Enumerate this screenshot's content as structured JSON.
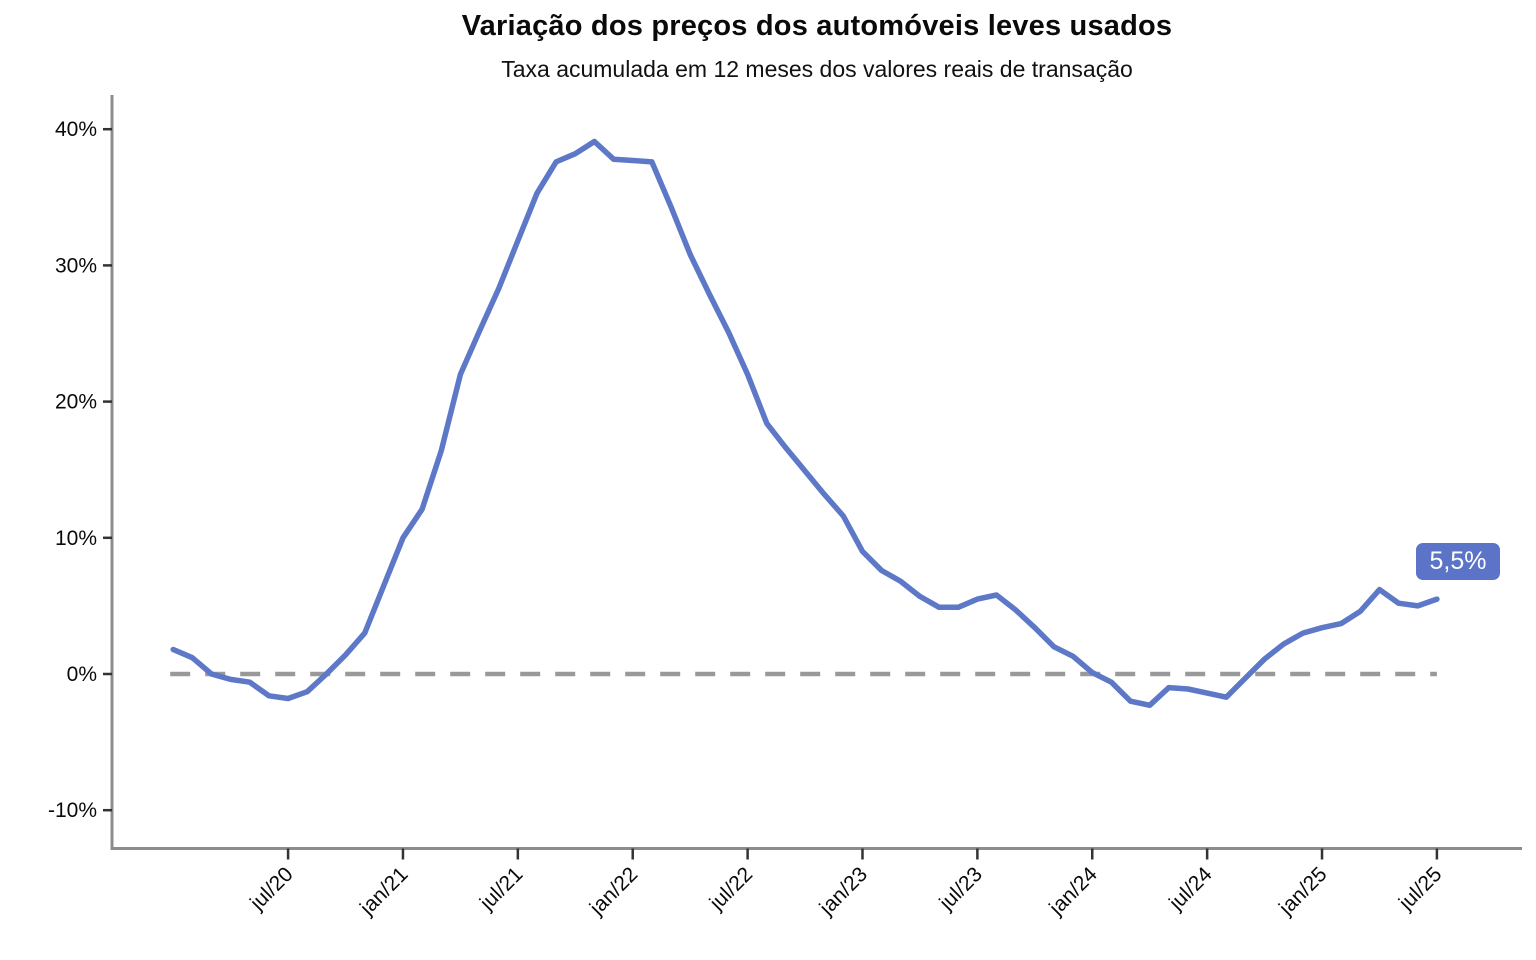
{
  "page": {
    "background": "#ffffff"
  },
  "chart_data": {
    "type": "line",
    "title": "Variação dos preços dos automóveis leves usados",
    "subtitle": "Taxa acumulada em 12 meses dos valores reais de transação",
    "grid": false,
    "legend": "none",
    "ylim": [
      -12,
      42
    ],
    "y_tick_labels": [
      "40%",
      "30%",
      "20%",
      "10%",
      "0%",
      "-10%"
    ],
    "y_tick_values": [
      40,
      30,
      20,
      10,
      0,
      -10
    ],
    "x_ticks": [
      {
        "label": "jul/20",
        "month_index": 6
      },
      {
        "label": "jan/21",
        "month_index": 12
      },
      {
        "label": "jul/21",
        "month_index": 18
      },
      {
        "label": "jan/22",
        "month_index": 24
      },
      {
        "label": "jul/22",
        "month_index": 30
      },
      {
        "label": "jan/23",
        "month_index": 36
      },
      {
        "label": "jul/23",
        "month_index": 42
      },
      {
        "label": "jan/24",
        "month_index": 48
      },
      {
        "label": "jul/24",
        "month_index": 54
      },
      {
        "label": "jan/25",
        "month_index": 60
      },
      {
        "label": "jul/25",
        "month_index": 66
      }
    ],
    "zero_reference_line": true,
    "series": [
      {
        "name": "Taxa acumulada em 12 meses",
        "x_start": "jan/20",
        "x_end": "jul/25",
        "frequency": "monthly",
        "values": [
          1.8,
          1.2,
          0.0,
          -0.4,
          -0.6,
          -1.6,
          -1.8,
          -1.3,
          0.0,
          1.4,
          3.0,
          6.5,
          10.0,
          12.1,
          16.4,
          22.0,
          25.2,
          28.3,
          31.8,
          35.3,
          37.6,
          38.2,
          39.1,
          37.8,
          37.7,
          37.6,
          34.3,
          30.8,
          27.9,
          25.1,
          22.0,
          18.4,
          16.6,
          14.9,
          13.2,
          11.6,
          9.0,
          7.6,
          6.8,
          5.7,
          4.9,
          4.9,
          5.5,
          5.8,
          4.7,
          3.4,
          2.0,
          1.3,
          0.1,
          -0.6,
          -2.0,
          -2.3,
          -1.0,
          -1.1,
          -1.4,
          -1.7,
          -0.3,
          1.1,
          2.2,
          3.0,
          3.4,
          3.7,
          4.6,
          6.2,
          5.2,
          5.0,
          5.5
        ]
      }
    ],
    "end_label": "5,5%",
    "colors": {
      "line": "#5E78C8",
      "badge_bg": "#5B74C8",
      "badge_text": "#ffffff",
      "zero_line": "#999999",
      "axis": "#8C8C8C",
      "tick": "#333333",
      "text": "#0a0a0a"
    }
  }
}
